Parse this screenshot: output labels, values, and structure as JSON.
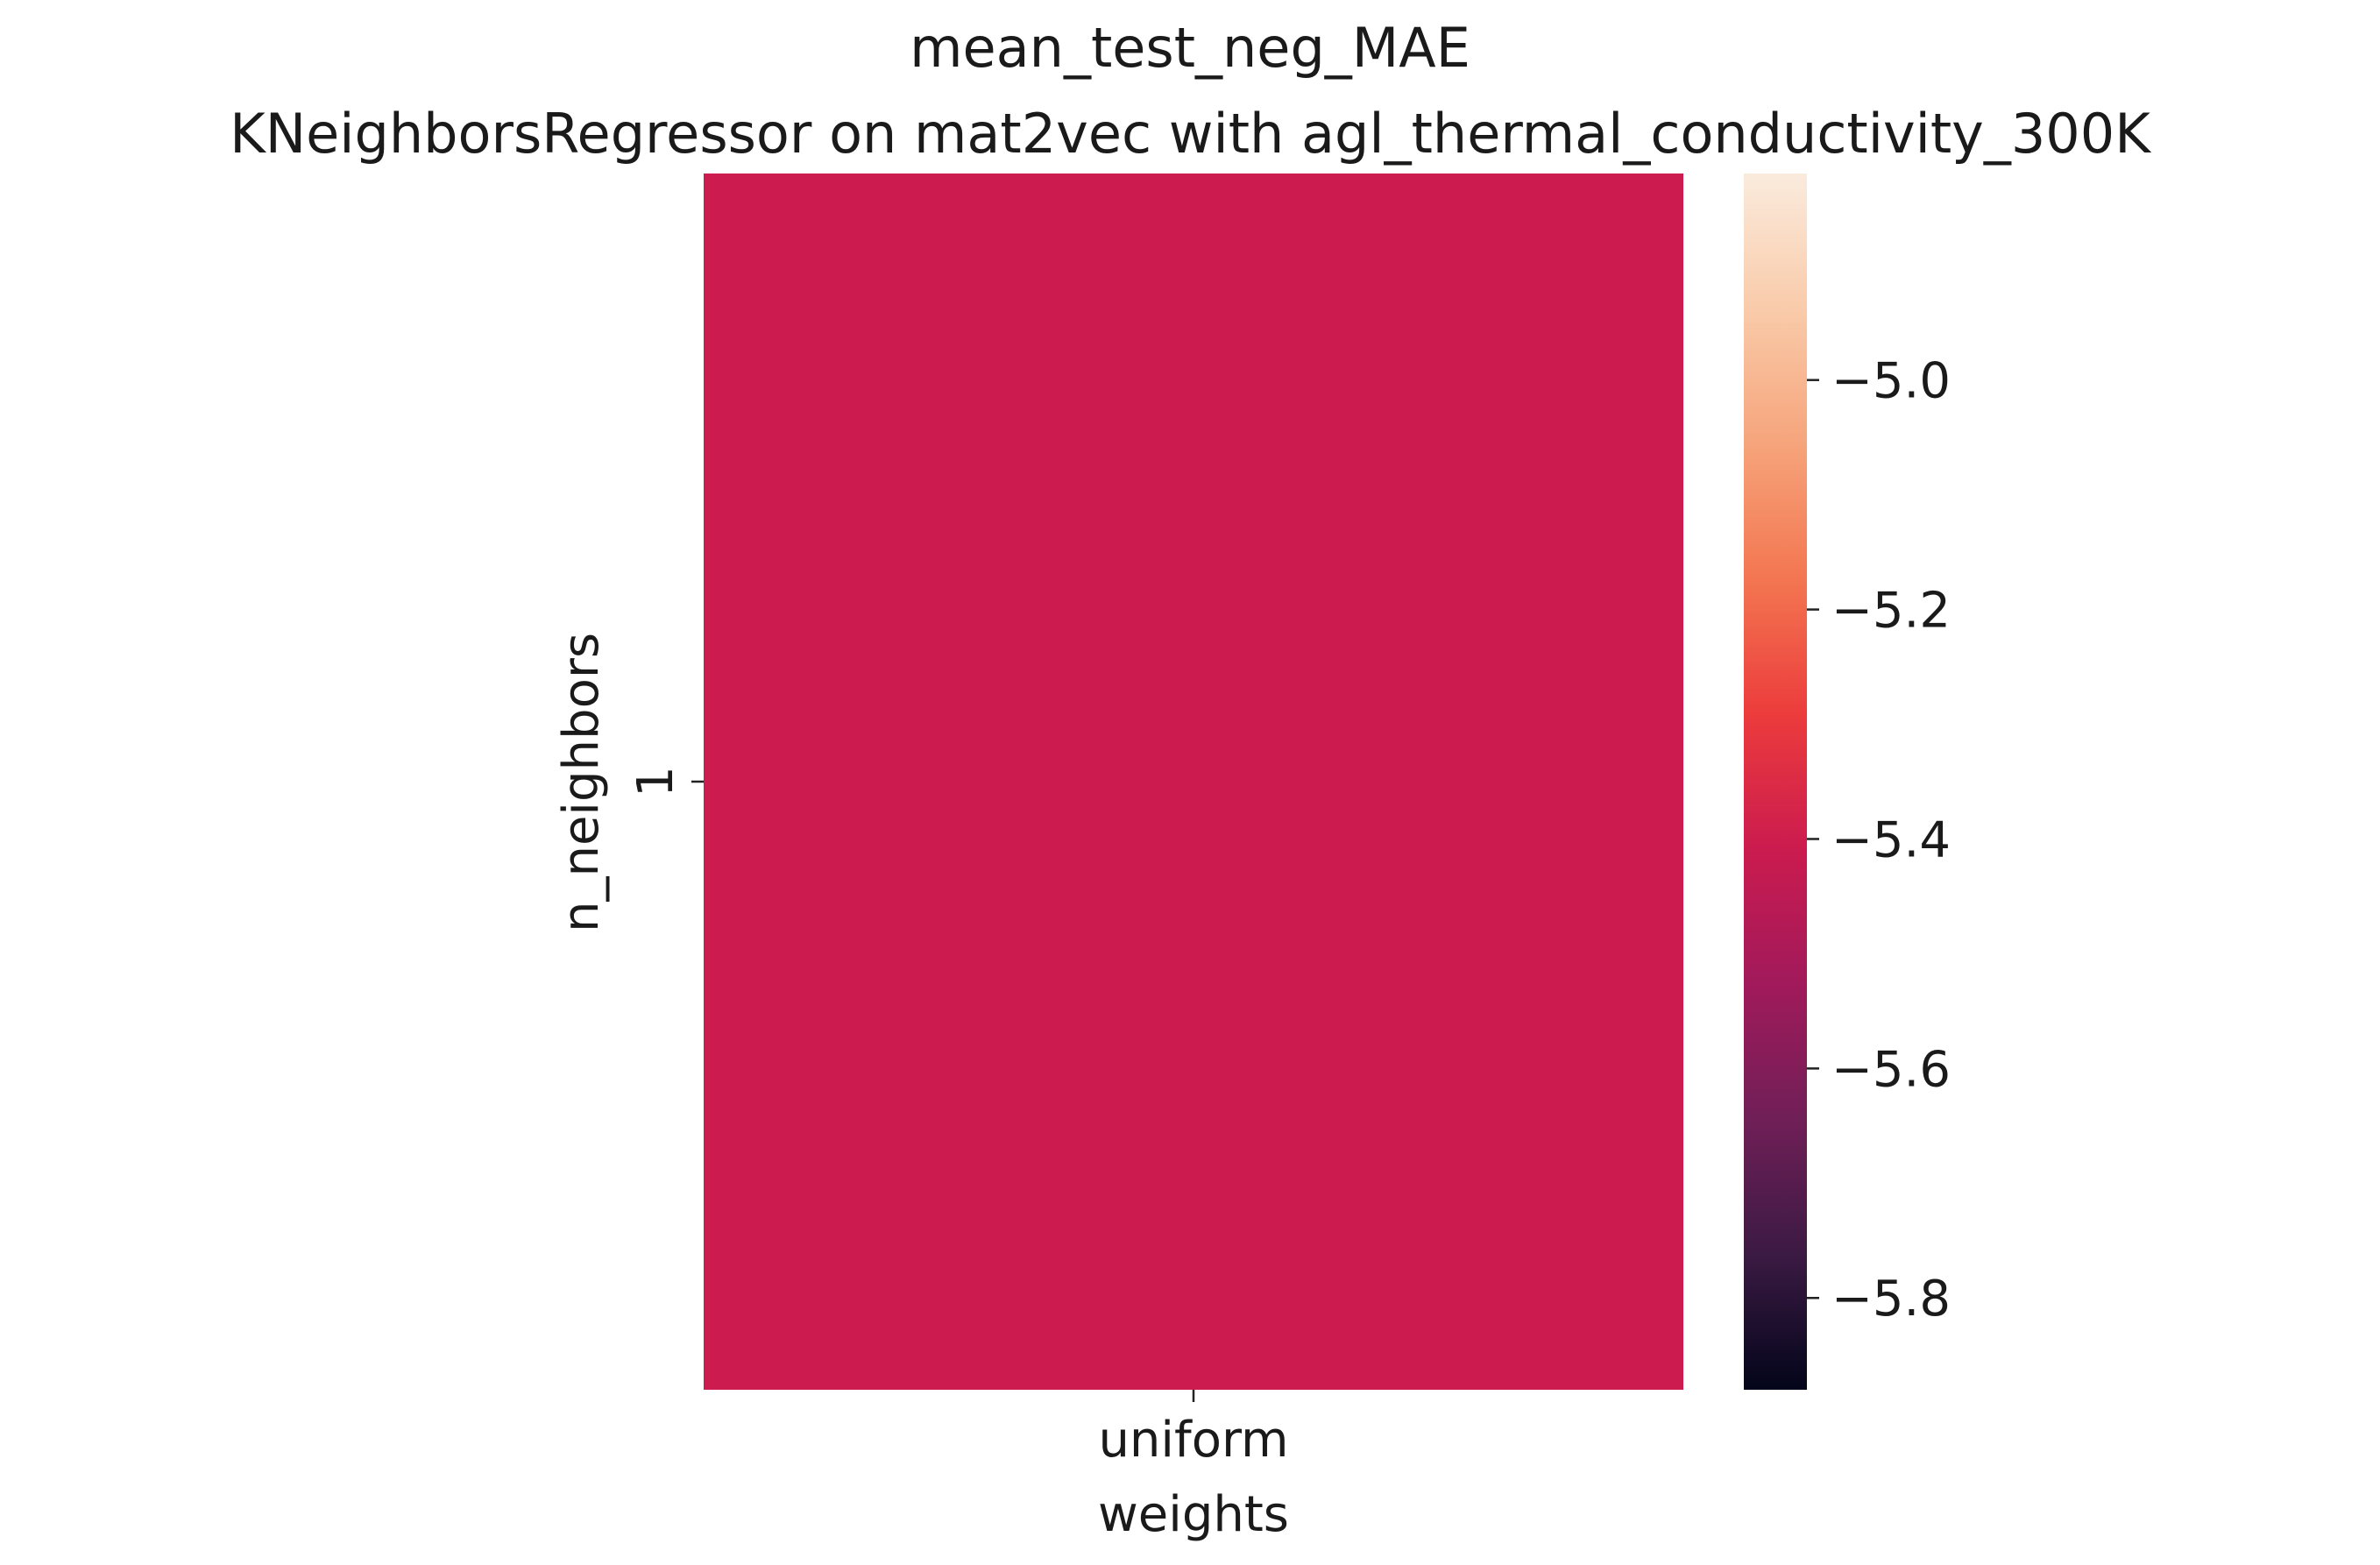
{
  "chart_data": {
    "type": "heatmap",
    "title": "mean_test_neg_MAE",
    "subtitle": "KNeighborsRegressor on mat2vec with agl_thermal_conductivity_300K",
    "xlabel": "weights",
    "ylabel": "n_neighbors",
    "x_categories": [
      "uniform"
    ],
    "y_categories": [
      "1"
    ],
    "values": [
      [
        -5.36
      ]
    ],
    "cell_color": "#cb1b4f",
    "colorbar": {
      "range": [
        -5.88,
        -4.82
      ],
      "ticks": [
        -5.8,
        -5.6,
        -5.4,
        -5.2,
        -5.0
      ],
      "tick_labels": [
        "−5.8",
        "−5.6",
        "−5.4",
        "−5.2",
        "−5.0"
      ],
      "colormap": "rocket",
      "colormap_stops": [
        "#03051a",
        "#3b1a43",
        "#701f57",
        "#a11a5b",
        "#cb1b4f",
        "#ec3c3c",
        "#f37651",
        "#f6a47b",
        "#f9cbaa",
        "#faebdd"
      ]
    }
  }
}
